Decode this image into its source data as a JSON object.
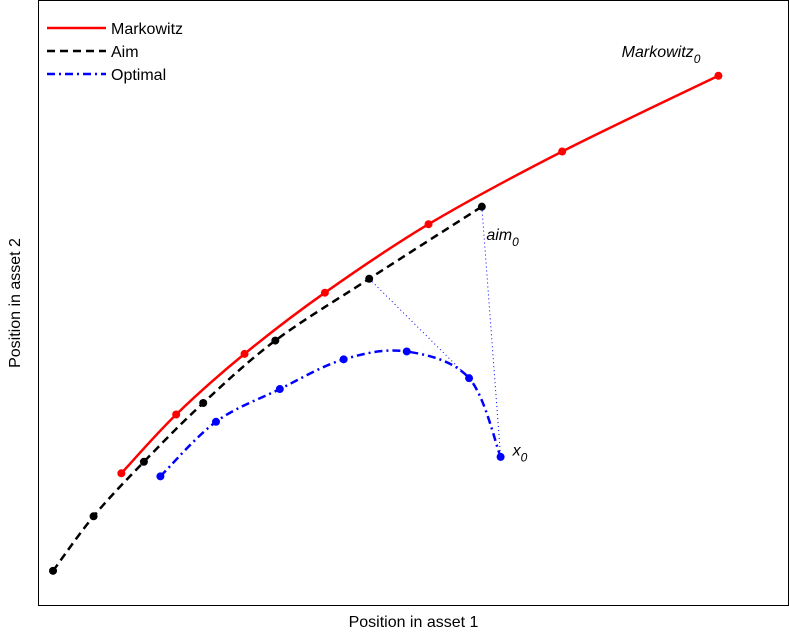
{
  "chart_data": {
    "type": "line",
    "xlabel": "Position in asset 1",
    "ylabel": "Position in asset 2",
    "xlim": [
      0,
      100
    ],
    "ylim": [
      0,
      100
    ],
    "grid": false,
    "legend_position": "top-left",
    "series": [
      {
        "name": "Markowitz",
        "color": "#ff0000",
        "style": "solid",
        "points": [
          [
            11.1,
            21.9
          ],
          [
            18.4,
            31.6
          ],
          [
            27.5,
            41.6
          ],
          [
            38.2,
            51.7
          ],
          [
            52.0,
            63.0
          ],
          [
            69.8,
            75.0
          ],
          [
            90.6,
            87.5
          ]
        ]
      },
      {
        "name": "Aim",
        "color": "#000000",
        "style": "dashed",
        "points": [
          [
            2.0,
            5.8
          ],
          [
            7.4,
            14.8
          ],
          [
            14.1,
            23.8
          ],
          [
            22.0,
            33.5
          ],
          [
            31.6,
            43.8
          ],
          [
            44.1,
            54.0
          ],
          [
            59.1,
            65.9
          ]
        ]
      },
      {
        "name": "Optimal",
        "color": "#0000ff",
        "style": "dashdot",
        "points": [
          [
            16.3,
            21.4
          ],
          [
            23.7,
            30.4
          ],
          [
            32.2,
            35.8
          ],
          [
            40.7,
            40.7
          ],
          [
            49.1,
            42.0
          ],
          [
            57.4,
            37.6
          ],
          [
            61.6,
            24.6
          ]
        ]
      }
    ],
    "connectors": {
      "color": "#0000ff",
      "style": "dotted",
      "segments": [
        [
          [
            44.1,
            54.0
          ],
          [
            57.4,
            37.6
          ]
        ],
        [
          [
            59.1,
            65.9
          ],
          [
            61.6,
            24.6
          ]
        ]
      ]
    },
    "annotations": [
      {
        "base": "Markowitz",
        "sub": "0",
        "x": 88.2,
        "y": 90.6,
        "anchor": "end"
      },
      {
        "base": "aim",
        "sub": "0",
        "x": 59.7,
        "y": 60.4,
        "anchor": "start"
      },
      {
        "base": "x",
        "sub": "0",
        "x": 63.2,
        "y": 24.8,
        "anchor": "start"
      }
    ]
  }
}
